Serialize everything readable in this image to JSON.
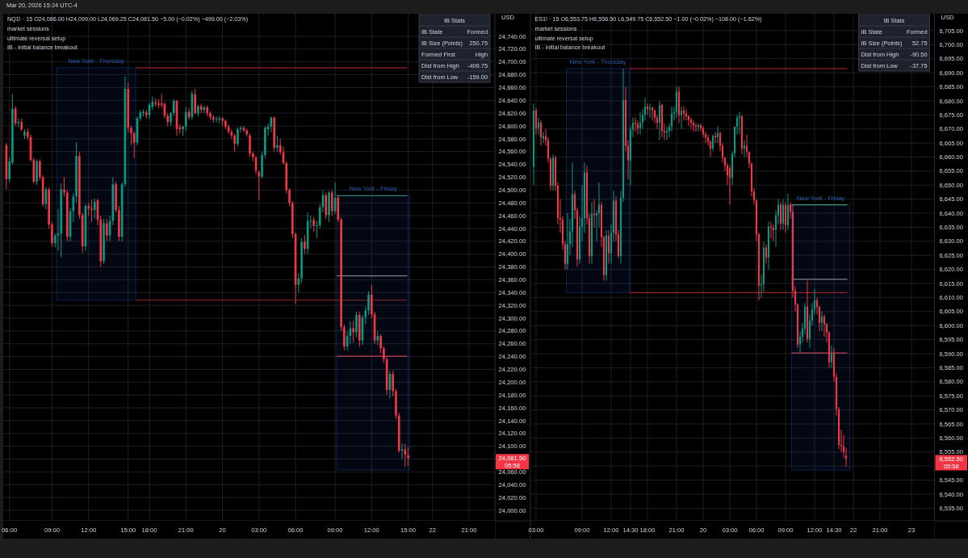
{
  "chart_data": [
    {
      "type": "candlestick",
      "title": "NQ1! · 15  O24,086.00 H24,099.00 L24,069.25 C24,081.50 −5.00 (−0.02%) −499.00 (−2.03%)",
      "subtitle": "Mar 20, 2026 15:24 UTC-4",
      "categories": [
        null,
        "06:00",
        null,
        null,
        null,
        null,
        null,
        null,
        null,
        null,
        null,
        null,
        null,
        null,
        null,
        "09:00",
        null,
        null,
        null,
        null,
        null,
        null,
        null,
        null,
        null,
        null,
        null,
        "12:00",
        null,
        null,
        null,
        null,
        null,
        null,
        null,
        null,
        null,
        null,
        null,
        null,
        "15:00",
        null,
        null,
        null,
        null,
        null,
        null,
        "18:00",
        null,
        null,
        null,
        null,
        null,
        null,
        null,
        null,
        null,
        null,
        null,
        "21:00",
        null,
        null,
        null,
        null,
        null,
        null,
        null,
        null,
        null,
        null,
        null,
        "20",
        null,
        null,
        null,
        null,
        null,
        null,
        null,
        null,
        null,
        null,
        null,
        "03:00",
        null,
        null,
        null,
        null,
        null,
        null,
        null,
        null,
        null,
        null,
        null,
        "06:00",
        null,
        null,
        null,
        null,
        null,
        null,
        null,
        null,
        null,
        null,
        null,
        null,
        "09:00",
        null,
        null,
        null,
        null,
        null,
        null,
        null,
        null,
        null,
        null,
        null,
        "12:00",
        null,
        null,
        null,
        null,
        null,
        null,
        null,
        null,
        null,
        null,
        null,
        "15:00",
        null,
        null,
        null,
        null,
        null,
        null,
        null,
        "22",
        null,
        null,
        null,
        null,
        null,
        null,
        null,
        null,
        null,
        null,
        null,
        "21:00",
        null,
        null,
        null,
        null,
        null,
        null,
        null,
        null
      ],
      "ohlc": [
        [
          24570,
          24574,
          24501,
          24517
        ],
        [
          24517,
          24552,
          24512,
          24545
        ],
        [
          24543,
          24650,
          24540,
          24627
        ],
        [
          24627,
          24631,
          24600,
          24604
        ],
        [
          24604,
          24612,
          24598,
          24606
        ],
        [
          24606,
          24612,
          24592,
          24595
        ],
        [
          24585,
          24595,
          24580,
          24591
        ],
        [
          24591,
          24596,
          24578,
          24583
        ],
        [
          24583,
          24587,
          24544,
          24547
        ],
        [
          24547,
          24550,
          24510,
          24513
        ],
        [
          24513,
          24548,
          24508,
          24545
        ],
        [
          24545,
          24548,
          24515,
          24520
        ],
        [
          24520,
          24523,
          24474,
          24478
        ],
        [
          24478,
          24505,
          24470,
          24501
        ],
        [
          24501,
          24504,
          24440,
          24446
        ],
        [
          24446,
          24450,
          24412,
          24417
        ],
        [
          24417,
          24432,
          24410,
          24429
        ],
        [
          24429,
          24470,
          24405,
          24432
        ],
        [
          24432,
          24510,
          24395,
          24501
        ],
        [
          24501,
          24520,
          24490,
          24496
        ],
        [
          24496,
          24500,
          24420,
          24427
        ],
        [
          24427,
          24472,
          24420,
          24467
        ],
        [
          24467,
          24495,
          24450,
          24490
        ],
        [
          24490,
          24575,
          24480,
          24553
        ],
        [
          24553,
          24560,
          24455,
          24461
        ],
        [
          24461,
          24465,
          24402,
          24412
        ],
        [
          24412,
          24478,
          24405,
          24475
        ],
        [
          24475,
          24480,
          24460,
          24471
        ],
        [
          24471,
          24485,
          24450,
          24469
        ],
        [
          24469,
          24487,
          24455,
          24482
        ],
        [
          24484,
          24487,
          24445,
          24454
        ],
        [
          24454,
          24460,
          24380,
          24389
        ],
        [
          24389,
          24455,
          24385,
          24448
        ],
        [
          24448,
          24455,
          24420,
          24429
        ],
        [
          24429,
          24460,
          24420,
          24452
        ],
        [
          24452,
          24520,
          24445,
          24509
        ],
        [
          24509,
          24513,
          24465,
          24469
        ],
        [
          24469,
          24475,
          24420,
          24427
        ],
        [
          24427,
          24512,
          24420,
          24509
        ],
        [
          24509,
          24677,
          24505,
          24658
        ],
        [
          24658,
          24668,
          24590,
          24597
        ],
        [
          24597,
          24600,
          24570,
          24589
        ],
        [
          24589,
          24592,
          24550,
          24574
        ],
        [
          24574,
          24615,
          24570,
          24612
        ],
        [
          24612,
          24625,
          24608,
          24621
        ],
        [
          24620,
          24626,
          24615,
          24622
        ],
        [
          24621,
          24625,
          24612,
          24617
        ],
        [
          24617,
          24636,
          24612,
          24633
        ],
        [
          24630,
          24646,
          24625,
          24638
        ],
        [
          24637,
          24643,
          24630,
          24635
        ],
        [
          24635,
          24642,
          24628,
          24633
        ],
        [
          24635,
          24650,
          24628,
          24633
        ],
        [
          24634,
          24637,
          24612,
          24616
        ],
        [
          24616,
          24620,
          24600,
          24606
        ],
        [
          24606,
          24622,
          24600,
          24620
        ],
        [
          24620,
          24642,
          24615,
          24639
        ],
        [
          24639,
          24641,
          24585,
          24595
        ],
        [
          24598,
          24603,
          24588,
          24595
        ],
        [
          24595,
          24600,
          24585,
          24599
        ],
        [
          24599,
          24630,
          24592,
          24622
        ],
        [
          24622,
          24628,
          24610,
          24614
        ],
        [
          24614,
          24655,
          24610,
          24650
        ],
        [
          24650,
          24658,
          24618,
          24620
        ],
        [
          24620,
          24633,
          24615,
          24631
        ],
        [
          24631,
          24635,
          24620,
          24625
        ],
        [
          24625,
          24632,
          24620,
          24629
        ],
        [
          24629,
          24632,
          24615,
          24620
        ],
        [
          24620,
          24623,
          24610,
          24614
        ],
        [
          24614,
          24617,
          24605,
          24610
        ],
        [
          24610,
          24615,
          24605,
          24611
        ],
        [
          24610,
          24616,
          24604,
          24612
        ],
        [
          24612,
          24614,
          24600,
          24608
        ],
        [
          24608,
          24610,
          24595,
          24599
        ],
        [
          24599,
          24602,
          24588,
          24591
        ],
        [
          24591,
          24594,
          24580,
          24585
        ],
        [
          24585,
          24588,
          24560,
          24572
        ],
        [
          24572,
          24598,
          24568,
          24595
        ],
        [
          24595,
          24600,
          24590,
          24597
        ],
        [
          24597,
          24600,
          24590,
          24593
        ],
        [
          24593,
          24596,
          24583,
          24587
        ],
        [
          24585,
          24588,
          24552,
          24557
        ],
        [
          24557,
          24560,
          24545,
          24551
        ],
        [
          24551,
          24554,
          24525,
          24530
        ],
        [
          24528,
          24531,
          24484,
          24521
        ],
        [
          24521,
          24560,
          24518,
          24555
        ],
        [
          24555,
          24600,
          24550,
          24597
        ],
        [
          24595,
          24604,
          24585,
          24599
        ],
        [
          24599,
          24615,
          24590,
          24613
        ],
        [
          24613,
          24615,
          24560,
          24566
        ],
        [
          24566,
          24585,
          24560,
          24570
        ],
        [
          24570,
          24580,
          24555,
          24559
        ],
        [
          24559,
          24568,
          24540,
          24542
        ],
        [
          24542,
          24545,
          24495,
          24500
        ],
        [
          24500,
          24503,
          24475,
          24480
        ],
        [
          24480,
          24483,
          24425,
          24431
        ],
        [
          24431,
          24434,
          24322,
          24352
        ],
        [
          24352,
          24370,
          24340,
          24362
        ],
        [
          24362,
          24425,
          24355,
          24419
        ],
        [
          24419,
          24430,
          24400,
          24408
        ],
        [
          24408,
          24465,
          24400,
          24452
        ],
        [
          24452,
          24460,
          24440,
          24453
        ],
        [
          24453,
          24458,
          24435,
          24444
        ],
        [
          24444,
          24452,
          24425,
          24445
        ],
        [
          24445,
          24478,
          24440,
          24473
        ],
        [
          24473,
          24500,
          24465,
          24492
        ],
        [
          24492,
          24496,
          24455,
          24461
        ],
        [
          24461,
          24498,
          24450,
          24496
        ],
        [
          24496,
          24500,
          24460,
          24467
        ],
        [
          24467,
          24512,
          24462,
          24488
        ],
        [
          24488,
          24491,
          24450,
          24454
        ],
        [
          24454,
          24457,
          24280,
          24286
        ],
        [
          24286,
          24290,
          24250,
          24256
        ],
        [
          24256,
          24280,
          24250,
          24272
        ],
        [
          24272,
          24295,
          24260,
          24284
        ],
        [
          24284,
          24296,
          24262,
          24278
        ],
        [
          24278,
          24310,
          24270,
          24305
        ],
        [
          24305,
          24310,
          24255,
          24265
        ],
        [
          24265,
          24305,
          24258,
          24301
        ],
        [
          24301,
          24318,
          24290,
          24312
        ],
        [
          24312,
          24342,
          24305,
          24337
        ],
        [
          24337,
          24352,
          24300,
          24306
        ],
        [
          24306,
          24310,
          24260,
          24265
        ],
        [
          24265,
          24280,
          24258,
          24272
        ],
        [
          24272,
          24275,
          24245,
          24253
        ],
        [
          24253,
          24256,
          24230,
          24236
        ],
        [
          24236,
          24240,
          24180,
          24188
        ],
        [
          24188,
          24218,
          24175,
          24213
        ],
        [
          24213,
          24218,
          24178,
          24186
        ],
        [
          24186,
          24190,
          24143,
          24148
        ],
        [
          24148,
          24152,
          24090,
          24093
        ],
        [
          24093,
          24105,
          24080,
          24095
        ],
        [
          24095,
          24104,
          24068,
          24087
        ],
        [
          24086,
          24099,
          24069.25,
          24081.5
        ],
        null,
        null,
        null,
        null,
        null,
        null,
        null,
        null,
        null,
        null,
        null,
        null,
        null,
        null,
        null,
        null,
        null,
        null,
        null,
        null,
        null,
        null,
        null,
        null,
        null,
        null,
        null,
        null
      ],
      "ylim": [
        23983.5,
        24775.25
      ],
      "yticks": [
        {
          "value": 24000,
          "label": "24,000.00"
        },
        {
          "value": 24020,
          "label": "24,020.00"
        },
        {
          "value": 24040,
          "label": "24,040.00"
        },
        {
          "value": 24060,
          "label": "24,060.00"
        },
        {
          "value": 24080,
          "label": null
        },
        {
          "value": 24100,
          "label": "24,100.00"
        },
        {
          "value": 24120,
          "label": "24,120.00"
        },
        {
          "value": 24140,
          "label": "24,140.00"
        },
        {
          "value": 24160,
          "label": "24,160.00"
        },
        {
          "value": 24180,
          "label": "24,180.00"
        },
        {
          "value": 24200,
          "label": "24,200.00"
        },
        {
          "value": 24220,
          "label": "24,220.00"
        },
        {
          "value": 24240,
          "label": "24,240.00"
        },
        {
          "value": 24260,
          "label": "24,260.00"
        },
        {
          "value": 24280,
          "label": "24,280.00"
        },
        {
          "value": 24300,
          "label": "24,300.00"
        },
        {
          "value": 24320,
          "label": "24,320.00"
        },
        {
          "value": 24340,
          "label": "24,340.00"
        },
        {
          "value": 24360,
          "label": "24,360.00"
        },
        {
          "value": 24380,
          "label": "24,380.00"
        },
        {
          "value": 24400,
          "label": "24,400.00"
        },
        {
          "value": 24420,
          "label": "24,420.00"
        },
        {
          "value": 24440,
          "label": "24,440.00"
        },
        {
          "value": 24460,
          "label": "24,460.00"
        },
        {
          "value": 24480,
          "label": "24,480.00"
        },
        {
          "value": 24500,
          "label": "24,500.00"
        },
        {
          "value": 24520,
          "label": "24,520.00"
        },
        {
          "value": 24540,
          "label": "24,540.00"
        },
        {
          "value": 24560,
          "label": "24,560.00"
        },
        {
          "value": 24580,
          "label": "24,580.00"
        },
        {
          "value": 24600,
          "label": "24,600.00"
        },
        {
          "value": 24620,
          "label": "24,620.00"
        },
        {
          "value": 24640,
          "label": "24,640.00"
        },
        {
          "value": 24660,
          "label": "24,660.00"
        },
        {
          "value": 24680,
          "label": "24,680.00"
        },
        {
          "value": 24700,
          "label": "24,700.00"
        },
        {
          "value": 24720,
          "label": "24,720.00"
        },
        {
          "value": 24740,
          "label": "24,740.00"
        }
      ],
      "ylabel": "USD",
      "grid": true,
      "ref_lines": [
        {
          "axis": "y",
          "value": 24691,
          "color": "#b22833"
        },
        {
          "axis": "y",
          "value": 24328,
          "color": "#b22833"
        },
        {
          "axis": "y",
          "value": 24491.25,
          "color": "#4caf8a"
        },
        {
          "axis": "y",
          "value": 24366,
          "color": "#9598a1"
        },
        {
          "axis": "y",
          "value": 24240.5,
          "color": "#e04a5a"
        }
      ],
      "annotations": [
        "market sessions",
        "ultimate reversal setup",
        "IB - initial balance breakout",
        "New York - Thursday",
        "New York - Friday",
        "IB Stats",
        "IB State",
        "Formed",
        "IB Size (Points)",
        "250.75",
        "Formed First",
        "High",
        "Dist from High",
        "-409.75",
        "Dist from Low",
        "-159.00",
        "24,081.50",
        "05:58"
      ]
    },
    {
      "type": "candlestick",
      "title": "ES1! · 15  O6,553.75 H6,556.50 L6,549.75 C6,552.50 −1.00 (−0.02%) −108.00 (−1.62%)",
      "categories": [
        null,
        "03:00",
        null,
        null,
        null,
        null,
        null,
        null,
        null,
        null,
        null,
        null,
        null,
        null,
        null,
        null,
        null,
        null,
        null,
        null,
        "09:00",
        null,
        null,
        null,
        null,
        null,
        null,
        null,
        null,
        null,
        null,
        null,
        "12:00",
        null,
        null,
        null,
        null,
        null,
        null,
        null,
        "14:30",
        null,
        null,
        null,
        null,
        null,
        null,
        "18:00",
        null,
        null,
        null,
        null,
        null,
        null,
        null,
        null,
        null,
        null,
        null,
        "21:00",
        null,
        null,
        null,
        null,
        null,
        null,
        null,
        null,
        null,
        null,
        "20",
        null,
        null,
        null,
        null,
        null,
        null,
        null,
        null,
        null,
        null,
        "03:00",
        null,
        null,
        null,
        null,
        null,
        null,
        null,
        null,
        null,
        null,
        "06:00",
        null,
        null,
        null,
        null,
        null,
        null,
        null,
        null,
        null,
        null,
        null,
        "09:00",
        null,
        null,
        null,
        null,
        null,
        null,
        null,
        null,
        null,
        null,
        null,
        "12:00",
        null,
        null,
        null,
        null,
        null,
        null,
        null,
        "14:30",
        null,
        null,
        null,
        null,
        null,
        null,
        null,
        "22",
        null,
        null,
        null,
        null,
        null,
        null,
        null,
        null,
        null,
        null,
        "21:00",
        null,
        null,
        null,
        null,
        null,
        null,
        null,
        null,
        null,
        null,
        null,
        null,
        "23",
        null,
        null,
        null,
        null,
        null,
        null,
        null,
        null,
        null
      ],
      "ohlc": [
        [
          6656.5,
          6679,
          6650,
          6676.5
        ],
        [
          6676.5,
          6677.5,
          6668,
          6670.25
        ],
        [
          6670.25,
          6674,
          6668,
          6672.25
        ],
        [
          6672.25,
          6673,
          6664,
          6667
        ],
        [
          6666.5,
          6669,
          6665,
          6667.5
        ],
        [
          6667.5,
          6670,
          6664,
          6666
        ],
        [
          6666,
          6667,
          6658,
          6659.25
        ],
        [
          6659.25,
          6660,
          6648,
          6649.75
        ],
        [
          6649.75,
          6661,
          6648,
          6659.75
        ],
        [
          6659.75,
          6660.5,
          6648,
          6649.75
        ],
        [
          6649.75,
          6651,
          6636,
          6638.25
        ],
        [
          6638.25,
          6645,
          6633,
          6637.75
        ],
        [
          6637.75,
          6639,
          6627,
          6629
        ],
        [
          6629,
          6630,
          6620,
          6622
        ],
        [
          6622,
          6640,
          6620,
          6629
        ],
        [
          6629,
          6638,
          6625,
          6633.5
        ],
        [
          6633.5,
          6658,
          6628,
          6646.75
        ],
        [
          6646.75,
          6648,
          6638,
          6641
        ],
        [
          6641,
          6642,
          6621,
          6623.5
        ],
        [
          6623.5,
          6639,
          6622,
          6635.25
        ],
        [
          6635.25,
          6650,
          6630,
          6638.25
        ],
        [
          6638.25,
          6658,
          6633,
          6654.5
        ],
        [
          6654.5,
          6657,
          6636,
          6638.25
        ],
        [
          6638.25,
          6640,
          6622,
          6624.75
        ],
        [
          6624.75,
          6644,
          6622,
          6639.75
        ],
        [
          6639.75,
          6645,
          6635,
          6639.25
        ],
        [
          6639.25,
          6641,
          6630,
          6640
        ],
        [
          6640,
          6651,
          6635,
          6643
        ],
        [
          6643,
          6644,
          6628,
          6631.5
        ],
        [
          6631.5,
          6632,
          6616,
          6618
        ],
        [
          6618,
          6634,
          6616,
          6632
        ],
        [
          6632,
          6634,
          6622,
          6625.75
        ],
        [
          6625.75,
          6636,
          6622,
          6633
        ],
        [
          6633,
          6648,
          6630,
          6644.5
        ],
        [
          6644.5,
          6646,
          6630,
          6632.5
        ],
        [
          6632.5,
          6634,
          6624,
          6624.75
        ],
        [
          6624.75,
          6648,
          6622,
          6645.5
        ],
        [
          6645.5,
          6691.5,
          6644,
          6680.25
        ],
        [
          6680.25,
          6685,
          6662,
          6664
        ],
        [
          6664,
          6666,
          6652,
          6658.75
        ],
        [
          6658.75,
          6671,
          6650,
          6669.75
        ],
        [
          6669.75,
          6674,
          6667,
          6672.25
        ],
        [
          6672.25,
          6674,
          6669,
          6671.75
        ],
        [
          6671.75,
          6673,
          6668,
          6670.25
        ],
        [
          6670.25,
          6676,
          6668,
          6672.25
        ],
        [
          6672.25,
          6677,
          6670,
          6675
        ],
        [
          6675,
          6681,
          6673,
          6678
        ],
        [
          6678,
          6679,
          6675,
          6677
        ],
        [
          6677,
          6679,
          6674,
          6677.5
        ],
        [
          6677.5,
          6678,
          6673,
          6676.5
        ],
        [
          6676.5,
          6677,
          6672,
          6674
        ],
        [
          6674,
          6675,
          6670,
          6672.25
        ],
        [
          6672.25,
          6680,
          6666,
          6678.5
        ],
        [
          6678.5,
          6679,
          6667,
          6669.25
        ],
        [
          6669.25,
          6672,
          6666,
          6668.75
        ],
        [
          6668.75,
          6671,
          6666,
          6669.25
        ],
        [
          6669.25,
          6672,
          6667,
          6670.75
        ],
        [
          6670.75,
          6678,
          6669,
          6675.5
        ],
        [
          6675.5,
          6678,
          6673,
          6676
        ],
        [
          6676,
          6685,
          6674,
          6683.25
        ],
        [
          6683.25,
          6685,
          6672,
          6675
        ],
        [
          6675,
          6678,
          6670,
          6676.5
        ],
        [
          6676.5,
          6678,
          6673,
          6675.5
        ],
        [
          6675.5,
          6677,
          6673,
          6674.5
        ],
        [
          6674.5,
          6675,
          6671,
          6673.25
        ],
        [
          6673.25,
          6674,
          6670,
          6672.25
        ],
        [
          6672.25,
          6673,
          6669,
          6671.25
        ],
        [
          6671.25,
          6672,
          6669,
          6670.75
        ],
        [
          6670.75,
          6672,
          6669,
          6671.25
        ],
        [
          6671.25,
          6672,
          6669,
          6670.25
        ],
        [
          6670.25,
          6671,
          6667,
          6668
        ],
        [
          6668,
          6669,
          6665,
          6667
        ],
        [
          6667,
          6668,
          6664,
          6665.5
        ],
        [
          6665.5,
          6666,
          6660,
          6663
        ],
        [
          6663,
          6668,
          6662,
          6667.5
        ],
        [
          6667.5,
          6669,
          6665,
          6667
        ],
        [
          6667,
          6671,
          6665,
          6668.5
        ],
        [
          6668.5,
          6669,
          6662,
          6664
        ],
        [
          6664,
          6665,
          6658,
          6659.75
        ],
        [
          6659.75,
          6660,
          6655,
          6657
        ],
        [
          6657,
          6658,
          6650,
          6653.5
        ],
        [
          6656,
          6657,
          6643,
          6652.5
        ],
        [
          6652.5,
          6662,
          6650,
          6661.25
        ],
        [
          6661.25,
          6671,
          6660,
          6670.75
        ],
        [
          6670.75,
          6675,
          6668,
          6674
        ],
        [
          6674,
          6676,
          6668,
          6674.5
        ],
        [
          6674.5,
          6675,
          6661,
          6663
        ],
        [
          6663,
          6666,
          6660,
          6664
        ],
        [
          6664,
          6668,
          6660,
          6661.75
        ],
        [
          6661.75,
          6662,
          6656,
          6657.75
        ],
        [
          6657.75,
          6658,
          6646,
          6647.75
        ],
        [
          6647.75,
          6649,
          6643,
          6644.5
        ],
        [
          6644.5,
          6645,
          6630,
          6632.5
        ],
        [
          6632.5,
          6633,
          6609,
          6614.25
        ],
        [
          6614.25,
          6618,
          6610,
          6614.75
        ],
        [
          6614.75,
          6630,
          6612,
          6627.75
        ],
        [
          6627.75,
          6629,
          6622,
          6624.25
        ],
        [
          6624.25,
          6637,
          6620,
          6635.25
        ],
        [
          6635.25,
          6637,
          6631,
          6634.75
        ],
        [
          6634.75,
          6636,
          6630,
          6634
        ],
        [
          6634,
          6641,
          6628,
          6639.25
        ],
        [
          6639.25,
          6645,
          6636,
          6643
        ],
        [
          6643,
          6644,
          6634,
          6636.25
        ],
        [
          6636.25,
          6645,
          6634,
          6643
        ],
        [
          6643,
          6644,
          6633,
          6635.75
        ],
        [
          6635.75,
          6647,
          6634,
          6643
        ],
        [
          6643,
          6644,
          6638,
          6640.5
        ],
        [
          6640.5,
          6643,
          6610,
          6612.5
        ],
        [
          6612.5,
          6614,
          6605,
          6607.5
        ],
        [
          6607.5,
          6608,
          6592,
          6593.25
        ],
        [
          6593.25,
          6598,
          6590.5,
          6596
        ],
        [
          6596,
          6601,
          6594,
          6599
        ],
        [
          6599,
          6608,
          6597,
          6606.75
        ],
        [
          6606.75,
          6616,
          6594,
          6595.25
        ],
        [
          6595.25,
          6604,
          6592,
          6601.75
        ],
        [
          6601.75,
          6608,
          6600,
          6605.75
        ],
        [
          6605.75,
          6613,
          6604,
          6609
        ],
        [
          6609,
          6610,
          6604,
          6606.75
        ],
        [
          6606.75,
          6607,
          6598,
          6601
        ],
        [
          6601,
          6605,
          6598,
          6603.25
        ],
        [
          6603.25,
          6604,
          6596,
          6600.5
        ],
        [
          6600.5,
          6601,
          6594,
          6597.5
        ],
        [
          6597.5,
          6598,
          6585,
          6587
        ],
        [
          6587,
          6593,
          6585,
          6590
        ],
        [
          6590,
          6592,
          6580,
          6581.75
        ],
        [
          6581.75,
          6583,
          6568,
          6570.25
        ],
        [
          6570.25,
          6571,
          6556,
          6557.5
        ],
        [
          6557.5,
          6563,
          6555,
          6557
        ],
        [
          6557,
          6561,
          6553,
          6555
        ],
        [
          6553.75,
          6556.5,
          6549.75,
          6552.5
        ],
        null,
        null,
        null,
        null,
        null,
        null,
        null,
        null,
        null,
        null,
        null,
        null,
        null,
        null,
        null,
        null,
        null,
        null,
        null,
        null,
        null,
        null,
        null,
        null,
        null,
        null,
        null,
        null,
        null,
        null,
        null,
        null,
        null,
        null,
        null,
        null
      ],
      "ylim": [
        6530.5,
        6711
      ],
      "yticks": [
        {
          "value": 6535,
          "label": "6,535.00"
        },
        {
          "value": 6540,
          "label": "6,540.00"
        },
        {
          "value": 6545,
          "label": "6,545.00"
        },
        {
          "value": 6550,
          "label": null
        },
        {
          "value": 6555,
          "label": "6,555.00"
        },
        {
          "value": 6560,
          "label": "6,560.00"
        },
        {
          "value": 6565,
          "label": "6,565.00"
        },
        {
          "value": 6570,
          "label": "6,570.00"
        },
        {
          "value": 6575,
          "label": "6,575.00"
        },
        {
          "value": 6580,
          "label": "6,580.00"
        },
        {
          "value": 6585,
          "label": "6,585.00"
        },
        {
          "value": 6590,
          "label": "6,590.00"
        },
        {
          "value": 6595,
          "label": "6,595.00"
        },
        {
          "value": 6600,
          "label": "6,600.00"
        },
        {
          "value": 6605,
          "label": "6,605.00"
        },
        {
          "value": 6610,
          "label": "6,610.00"
        },
        {
          "value": 6615,
          "label": "6,615.00"
        },
        {
          "value": 6620,
          "label": "6,620.00"
        },
        {
          "value": 6625,
          "label": "6,625.00"
        },
        {
          "value": 6630,
          "label": "6,630.00"
        },
        {
          "value": 6635,
          "label": "6,635.00"
        },
        {
          "value": 6640,
          "label": "6,640.00"
        },
        {
          "value": 6645,
          "label": "6,645.00"
        },
        {
          "value": 6650,
          "label": "6,650.00"
        },
        {
          "value": 6655,
          "label": "6,655.00"
        },
        {
          "value": 6660,
          "label": "6,660.00"
        },
        {
          "value": 6665,
          "label": "6,665.00"
        },
        {
          "value": 6670,
          "label": "6,670.00"
        },
        {
          "value": 6675,
          "label": "6,675.00"
        },
        {
          "value": 6680,
          "label": "6,680.00"
        },
        {
          "value": 6685,
          "label": "6,685.00"
        },
        {
          "value": 6690,
          "label": "6,690.00"
        },
        {
          "value": 6695,
          "label": "6,695.00"
        },
        {
          "value": 6700,
          "label": "6,700.00"
        },
        {
          "value": 6705,
          "label": "6,705.00"
        }
      ],
      "ylabel": "USD",
      "grid": true,
      "ref_lines": [
        {
          "axis": "y",
          "value": 6691.5,
          "color": "#b22833"
        },
        {
          "axis": "y",
          "value": 6611.75,
          "color": "#b22833"
        },
        {
          "axis": "y",
          "value": 6643,
          "color": "#4caf8a"
        },
        {
          "axis": "y",
          "value": 6616.5,
          "color": "#9598a1"
        },
        {
          "axis": "y",
          "value": 6590.25,
          "color": "#e04a5a"
        }
      ],
      "annotations": [
        "market sessions",
        "ultimate reversal setup",
        "IB - initial balance breakout",
        "New York - Thursday",
        "New York - Friday",
        "IB Stats",
        "IB State",
        "Formed",
        "IB Size (Points)",
        "52.75",
        "Dist from High",
        "-90.50",
        "Dist from Low",
        "-37.75",
        "6,552.50",
        "05:58"
      ]
    }
  ]
}
